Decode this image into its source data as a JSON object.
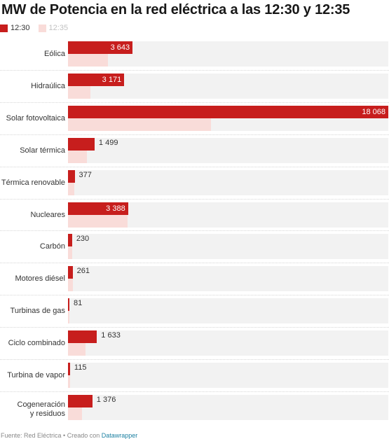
{
  "header": {
    "title": "MW de Potencia en la red eléctrica a las 12:30 y 12:35"
  },
  "legend": [
    {
      "label": "12:30",
      "color": "#c71e1d"
    },
    {
      "label": "12:35",
      "color": "#f9dcd9"
    }
  ],
  "colors": {
    "series_1230": "#c71e1d",
    "series_1235": "#f9dcd9",
    "row_background": "#f2f2f2"
  },
  "chart_data": {
    "type": "bar",
    "orientation": "horizontal",
    "title": "MW de Potencia en la red eléctrica a las 12:30 y 12:35",
    "xlim": [
      0,
      18068
    ],
    "grid": false,
    "legend_position": "top-left",
    "categories": [
      "Eólica",
      "Hidraúlica",
      "Solar fotovoltaica",
      "Solar térmica",
      "Térmica renovable",
      "Nucleares",
      "Carbón",
      "Motores diésel",
      "Turbinas de gas",
      "Ciclo combinado",
      "Turbina de vapor",
      "Cogeneración y residuos"
    ],
    "series": [
      {
        "name": "12:30",
        "values": [
          3643,
          3171,
          18068,
          1499,
          377,
          3388,
          230,
          261,
          81,
          1633,
          115,
          1376
        ],
        "labels": [
          "3 643",
          "3 171",
          "18 068",
          "1 499",
          "377",
          "3 388",
          "230",
          "261",
          "81",
          "1 633",
          "115",
          "1 376"
        ]
      },
      {
        "name": "12:35",
        "values": [
          2250,
          1250,
          8050,
          1050,
          370,
          3350,
          230,
          261,
          81,
          1000,
          115,
          800
        ]
      }
    ]
  },
  "footer": {
    "source": "Fuente: Red Eléctrica • Creado con ",
    "link": "Datawrapper"
  }
}
